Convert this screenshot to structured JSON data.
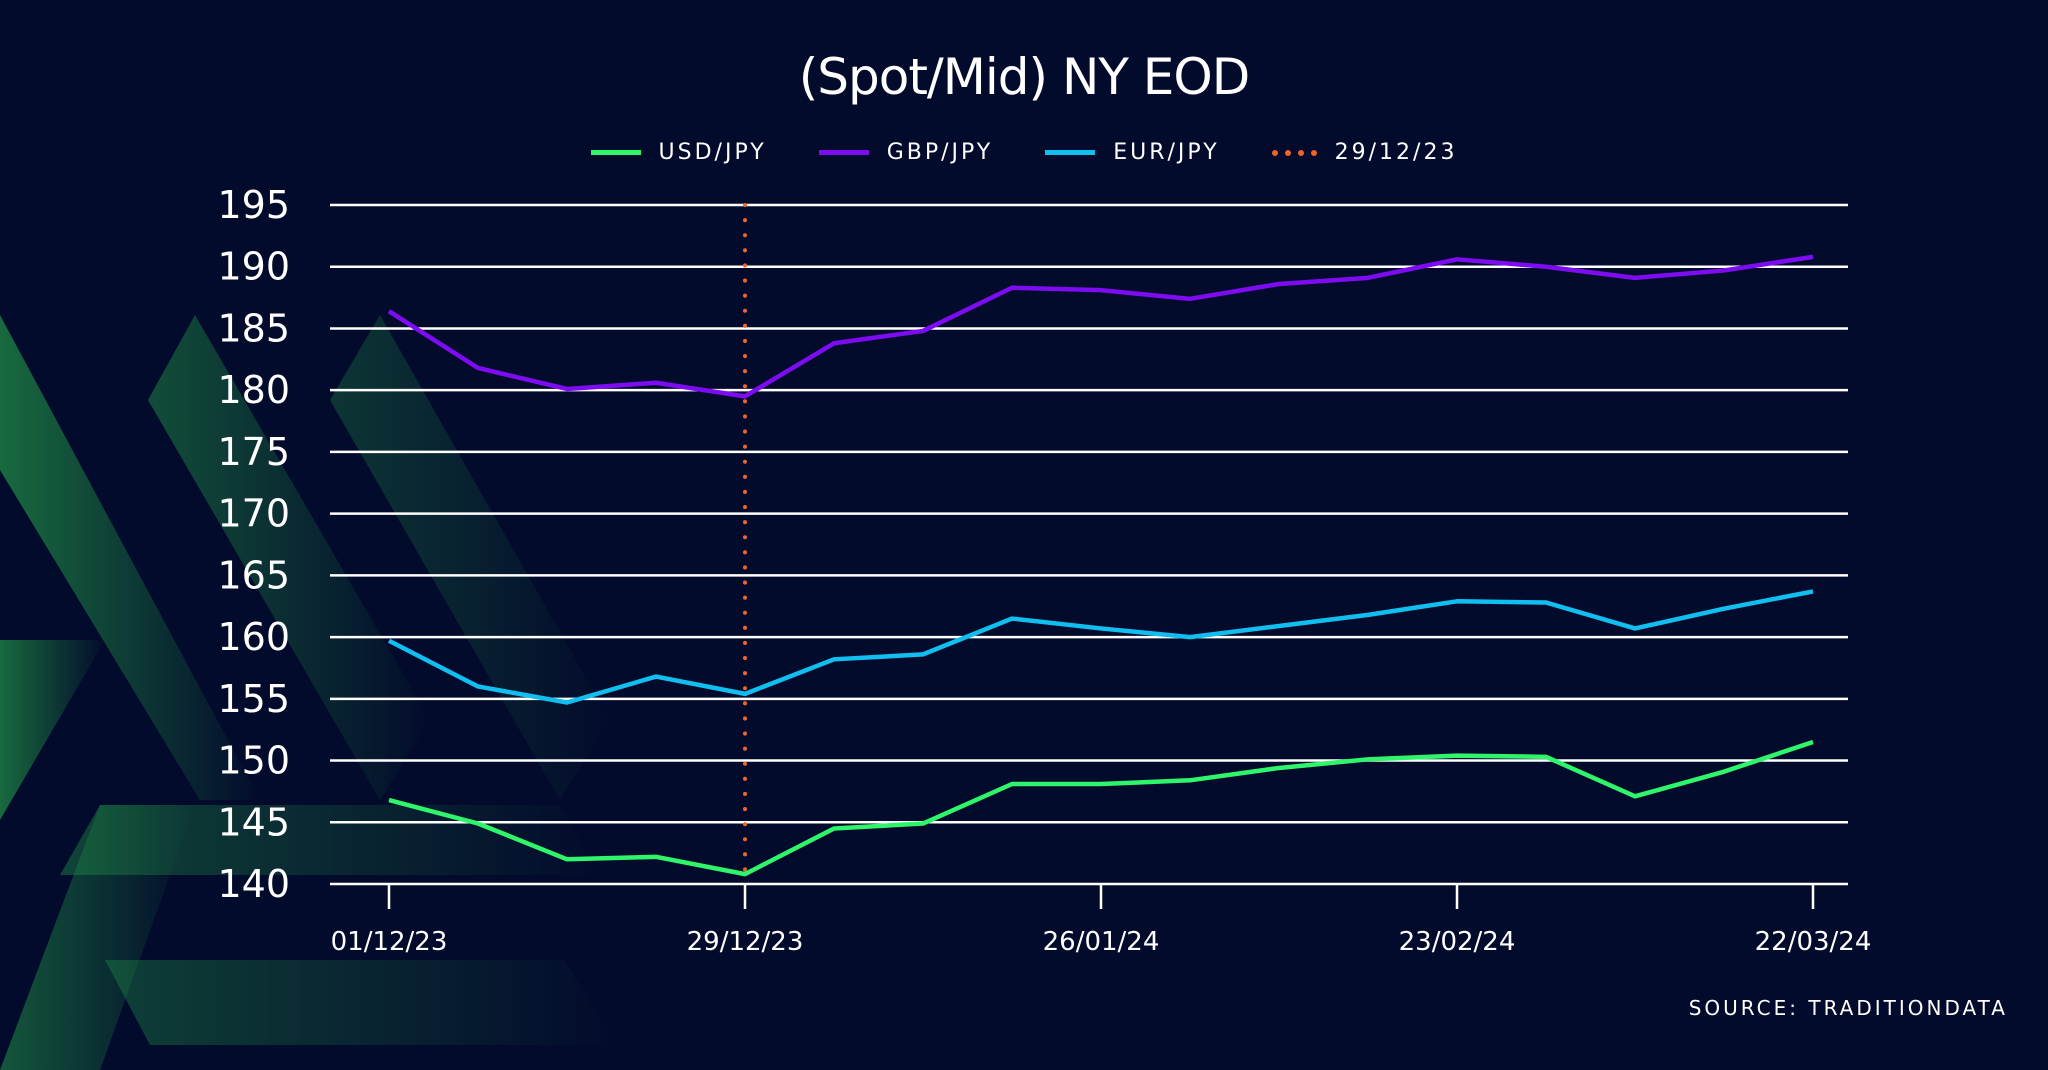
{
  "chart_data": {
    "type": "line",
    "title": "(Spot/Mid) NY EOD",
    "x": [
      "01/12/23",
      "08/12/23",
      "15/12/23",
      "22/12/23",
      "29/12/23",
      "05/01/24",
      "12/01/24",
      "19/01/24",
      "26/01/24",
      "02/02/24",
      "09/02/24",
      "16/02/24",
      "23/02/24",
      "01/03/24",
      "08/03/24",
      "15/03/24",
      "22/03/24"
    ],
    "x_tick_labels": [
      "01/12/23",
      "29/12/23",
      "26/01/24",
      "23/02/24",
      "22/03/24"
    ],
    "y_ticks": [
      140,
      145,
      150,
      155,
      160,
      165,
      170,
      175,
      180,
      185,
      190,
      195
    ],
    "ylim": [
      140,
      195
    ],
    "grid": "horizontal",
    "legend_position": "top",
    "series": [
      {
        "name": "USD/JPY",
        "color": "#2ef56a",
        "values": [
          146.8,
          144.9,
          142.0,
          142.2,
          140.8,
          144.5,
          144.9,
          148.1,
          148.1,
          148.4,
          149.4,
          150.1,
          150.4,
          150.3,
          147.1,
          149.1,
          151.5
        ]
      },
      {
        "name": "GBP/JPY",
        "color": "#7d0cf2",
        "values": [
          186.4,
          181.8,
          180.1,
          180.6,
          179.5,
          183.8,
          184.8,
          188.3,
          188.1,
          187.4,
          188.6,
          189.1,
          190.6,
          190.0,
          189.1,
          189.7,
          190.8
        ]
      },
      {
        "name": "EUR/JPY",
        "color": "#10bff0",
        "values": [
          159.7,
          156.0,
          154.7,
          156.8,
          155.4,
          158.2,
          158.6,
          161.5,
          160.7,
          160.0,
          160.9,
          161.8,
          162.9,
          162.8,
          160.7,
          162.3,
          163.7
        ]
      }
    ],
    "vertical_marker": {
      "name": "29/12/23",
      "x": "29/12/23",
      "color": "#f0642a"
    },
    "source": "SOURCE: TRADITIONDATA"
  }
}
